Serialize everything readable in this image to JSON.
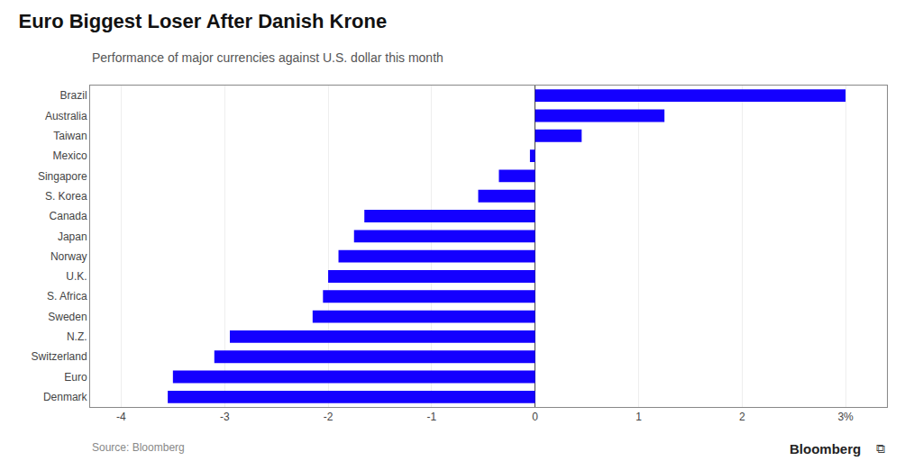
{
  "chart_data": {
    "type": "bar",
    "title": "Euro Biggest Loser After Danish Krone",
    "subtitle": "Performance of major currencies against U.S. dollar this month",
    "annotations": [
      "Source: Bloomberg",
      "Bloomberg",
      "⧉"
    ],
    "orientation": "horizontal",
    "categories": [
      "Denmark",
      "Euro",
      "Switzerland",
      "N.Z.",
      "Sweden",
      "S. Africa",
      "U.K.",
      "Norway",
      "Japan",
      "Canada",
      "S. Korea",
      "Singapore",
      "Mexico",
      "Taiwan",
      "Australia",
      "Brazil"
    ],
    "values": [
      -3.55,
      -3.5,
      -3.1,
      -2.95,
      -2.15,
      -2.05,
      -2.0,
      -1.9,
      -1.75,
      -1.65,
      -0.55,
      -0.35,
      -0.05,
      0.45,
      1.25,
      3.0
    ],
    "color": "#1400ff",
    "xlim": [
      -4.3,
      3.4
    ],
    "xticks": [
      -4,
      -3,
      -2,
      -1,
      0,
      1,
      2,
      {
        "value": 3,
        "label": "3%"
      }
    ],
    "grid": true
  }
}
